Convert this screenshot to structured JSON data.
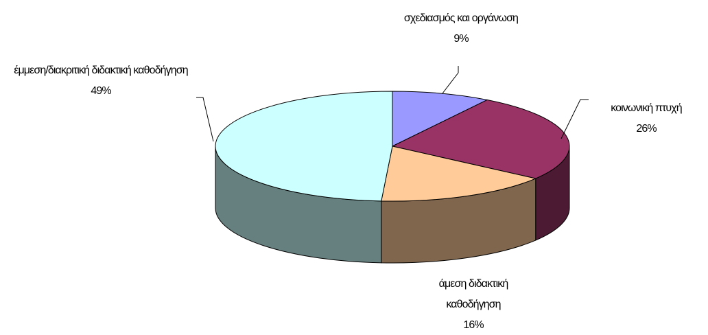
{
  "chart_data": {
    "type": "pie3d",
    "categories": [
      "σχεδιασμός και οργάνωση",
      "κοινωνική πτυχή",
      "άμεση διδακτική καθοδήγηση",
      "έμμεση/διακριτική διδακτική καθοδήγηση"
    ],
    "values": [
      9,
      26,
      16,
      49
    ],
    "value_labels": [
      "9%",
      "26%",
      "16%",
      "49%"
    ],
    "colors": [
      "#9999ff",
      "#993366",
      "#ffcc99",
      "#ccffff"
    ]
  }
}
